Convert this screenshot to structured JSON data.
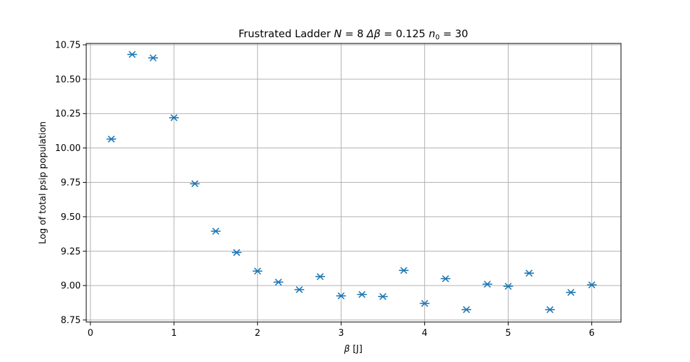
{
  "chart_data": {
    "type": "scatter",
    "title_parts": {
      "prefix": "Frustrated Ladder ",
      "n_sym": "N",
      "n_eq": " = 8 ",
      "dbeta": "Δβ",
      "dbeta_eq": " = 0.125 ",
      "n0_sym": "n",
      "n0_sub": "0",
      "n0_eq": " = 30"
    },
    "xlabel_parts": {
      "sym": "β",
      "unit": " [J]"
    },
    "ylabel": "Log of total psip population",
    "xlim": [
      -0.05,
      6.35
    ],
    "ylim": [
      8.735,
      10.76
    ],
    "xticks": [
      0,
      1,
      2,
      3,
      4,
      5,
      6
    ],
    "xtick_labels": [
      "0",
      "1",
      "2",
      "3",
      "4",
      "5",
      "6"
    ],
    "yticks": [
      8.75,
      9.0,
      9.25,
      9.5,
      9.75,
      10.0,
      10.25,
      10.5,
      10.75
    ],
    "ytick_labels": [
      "8.75",
      "9.00",
      "9.25",
      "9.50",
      "9.75",
      "10.00",
      "10.25",
      "10.50",
      "10.75"
    ],
    "grid": true,
    "marker": "x",
    "color": "#1f77b4",
    "series": [
      {
        "x": [
          0.25,
          0.5,
          0.75,
          1.0,
          1.25,
          1.5,
          1.75,
          2.0,
          2.25,
          2.5,
          2.75,
          3.0,
          3.25,
          3.5,
          3.75,
          4.0,
          4.25,
          4.5,
          4.75,
          5.0,
          5.25,
          5.5,
          5.75,
          6.0
        ],
        "y": [
          10.065,
          10.68,
          10.655,
          10.22,
          9.74,
          9.395,
          9.24,
          9.105,
          9.025,
          8.97,
          9.065,
          8.925,
          8.935,
          8.92,
          9.11,
          8.87,
          9.05,
          8.825,
          9.01,
          8.995,
          9.09,
          8.825,
          8.95,
          9.005
        ]
      }
    ]
  }
}
